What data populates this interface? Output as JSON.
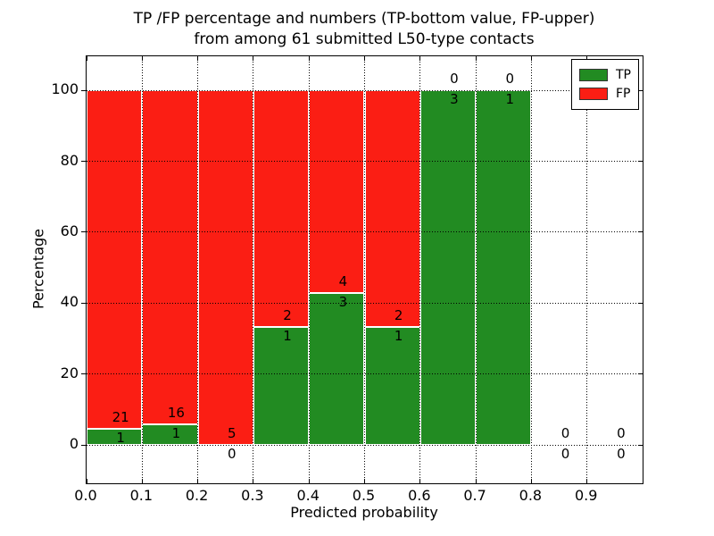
{
  "figure": {
    "kind": "matplotlib-style stacked bar chart"
  },
  "chart_data": {
    "type": "bar",
    "stacked": true,
    "normalized_to_percent": true,
    "title": "TP /FP percentage and numbers (TP-bottom value, FP-upper)\nfrom among 61 submitted L50-type contacts",
    "title_lines": [
      "TP /FP percentage and numbers (TP-bottom value, FP-upper)",
      "from among 61 submitted L50-type contacts"
    ],
    "xlabel": "Predicted probability",
    "ylabel": "Percentage",
    "xlim": [
      0.0,
      1.0
    ],
    "ylim": [
      -10.8,
      109.6
    ],
    "xticks": {
      "values": [
        0.0,
        0.1,
        0.2,
        0.3,
        0.4,
        0.5,
        0.6,
        0.7,
        0.8,
        0.9
      ],
      "labels": [
        "0.0",
        "0.1",
        "0.2",
        "0.3",
        "0.4",
        "0.5",
        "0.6",
        "0.7",
        "0.8",
        "0.9"
      ]
    },
    "yticks": {
      "values": [
        0,
        20,
        40,
        60,
        80,
        100
      ],
      "labels": [
        "0",
        "20",
        "40",
        "60",
        "80",
        "100"
      ]
    },
    "bin_width": 0.1,
    "bins": [
      {
        "range": [
          0.0,
          0.1
        ],
        "tp": 1,
        "fp": 21
      },
      {
        "range": [
          0.1,
          0.2
        ],
        "tp": 1,
        "fp": 16
      },
      {
        "range": [
          0.2,
          0.3
        ],
        "tp": 0,
        "fp": 5
      },
      {
        "range": [
          0.3,
          0.4
        ],
        "tp": 1,
        "fp": 2
      },
      {
        "range": [
          0.4,
          0.5
        ],
        "tp": 3,
        "fp": 4
      },
      {
        "range": [
          0.5,
          0.6
        ],
        "tp": 1,
        "fp": 2
      },
      {
        "range": [
          0.6,
          0.7
        ],
        "tp": 3,
        "fp": 0
      },
      {
        "range": [
          0.7,
          0.8
        ],
        "tp": 1,
        "fp": 0
      },
      {
        "range": [
          0.8,
          0.9
        ],
        "tp": 0,
        "fp": 0
      },
      {
        "range": [
          0.9,
          1.0
        ],
        "tp": 0,
        "fp": 0
      }
    ],
    "total_contacts": 61,
    "series": [
      {
        "name": "TP",
        "color": "#228b22"
      },
      {
        "name": "FP",
        "color": "#fb1e14"
      }
    ],
    "legend": {
      "position": "upper right"
    },
    "grid": {
      "on": true,
      "style": "dotted",
      "color": "#000000"
    },
    "bar_edge_color": "#ffffff"
  }
}
